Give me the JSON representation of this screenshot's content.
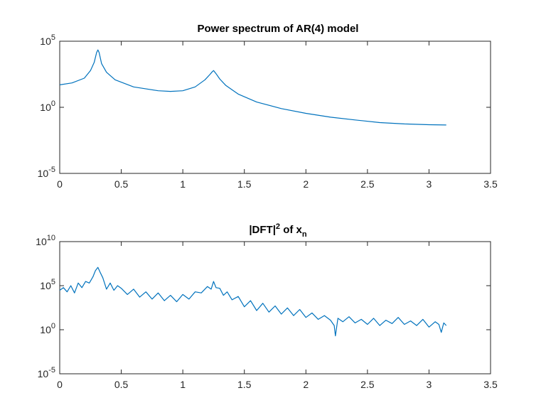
{
  "chart_data": [
    {
      "type": "line",
      "title": "Power spectrum of AR(4) model",
      "xlabel": "",
      "ylabel": "",
      "xlim": [
        0,
        3.5
      ],
      "ylim": [
        1e-05,
        100000.0
      ],
      "yscale": "log",
      "grid": false,
      "xticks": [
        "0",
        "0.5",
        "1",
        "1.5",
        "2",
        "2.5",
        "3",
        "3.5"
      ],
      "yticks": [
        {
          "base": "10",
          "exp": "-5",
          "value": 1e-05
        },
        {
          "base": "10",
          "exp": "0",
          "value": 1
        },
        {
          "base": "10",
          "exp": "5",
          "value": 100000
        }
      ],
      "line_color": "#0072BD",
      "series": [
        {
          "x": [
            0,
            0.1,
            0.2,
            0.25,
            0.28,
            0.3,
            0.31,
            0.32,
            0.34,
            0.38,
            0.45,
            0.6,
            0.8,
            0.9,
            1.0,
            1.1,
            1.18,
            1.22,
            1.24,
            1.25,
            1.27,
            1.3,
            1.35,
            1.45,
            1.6,
            1.8,
            2.0,
            2.2,
            2.4,
            2.6,
            2.8,
            3.0,
            3.14
          ],
          "y": [
            50,
            70,
            160,
            600,
            2500,
            14000,
            22000,
            14000,
            2000,
            450,
            120,
            35,
            18,
            16,
            18,
            35,
            120,
            300,
            500,
            600,
            350,
            140,
            45,
            10,
            2.5,
            0.8,
            0.35,
            0.18,
            0.11,
            0.07,
            0.055,
            0.048,
            0.046
          ]
        }
      ]
    },
    {
      "type": "line",
      "title": "|DFT|² of xₙ",
      "title_parts": {
        "main": "|DFT|",
        "sup": "2",
        "mid": " of x",
        "sub": "n"
      },
      "xlabel": "",
      "ylabel": "",
      "xlim": [
        0,
        3.5
      ],
      "ylim": [
        1e-05,
        10000000000.0
      ],
      "yscale": "log",
      "grid": false,
      "xticks": [
        "0",
        "0.5",
        "1",
        "1.5",
        "2",
        "2.5",
        "3",
        "3.5"
      ],
      "yticks": [
        {
          "base": "10",
          "exp": "-5",
          "value": 1e-05
        },
        {
          "base": "10",
          "exp": "0",
          "value": 1
        },
        {
          "base": "10",
          "exp": "5",
          "value": 100000
        },
        {
          "base": "10",
          "exp": "10",
          "value": 10000000000
        }
      ],
      "line_color": "#0072BD",
      "series": [
        {
          "x": [
            0.0,
            0.03,
            0.06,
            0.09,
            0.12,
            0.15,
            0.18,
            0.21,
            0.24,
            0.27,
            0.29,
            0.31,
            0.33,
            0.35,
            0.38,
            0.41,
            0.44,
            0.47,
            0.5,
            0.55,
            0.6,
            0.65,
            0.7,
            0.75,
            0.8,
            0.85,
            0.9,
            0.95,
            1.0,
            1.05,
            1.1,
            1.15,
            1.2,
            1.23,
            1.25,
            1.27,
            1.3,
            1.33,
            1.36,
            1.4,
            1.45,
            1.5,
            1.55,
            1.6,
            1.65,
            1.7,
            1.75,
            1.8,
            1.85,
            1.9,
            1.95,
            2.0,
            2.05,
            2.1,
            2.15,
            2.2,
            2.23,
            2.24,
            2.26,
            2.3,
            2.35,
            2.4,
            2.45,
            2.5,
            2.55,
            2.6,
            2.65,
            2.7,
            2.75,
            2.8,
            2.85,
            2.9,
            2.95,
            3.0,
            3.05,
            3.08,
            3.1,
            3.12,
            3.14
          ],
          "y": [
            30000,
            60000,
            20000,
            100000,
            15000,
            200000,
            60000,
            300000,
            200000,
            1000000,
            5000000,
            12000000,
            3000000,
            800000,
            40000,
            200000,
            30000,
            100000,
            50000,
            10000,
            40000,
            5000,
            20000,
            3000,
            15000,
            2000,
            8000,
            1500,
            10000,
            3000,
            20000,
            15000,
            80000,
            40000,
            300000,
            60000,
            50000,
            8000,
            20000,
            2500,
            6000,
            400,
            2000,
            150,
            1000,
            100,
            500,
            60,
            300,
            40,
            200,
            25,
            80,
            15,
            40,
            12,
            3,
            0.2,
            20,
            8,
            30,
            6,
            15,
            4,
            20,
            3,
            12,
            5,
            25,
            4,
            10,
            3,
            15,
            2,
            8,
            4,
            0.5,
            6,
            3
          ]
        }
      ]
    }
  ]
}
